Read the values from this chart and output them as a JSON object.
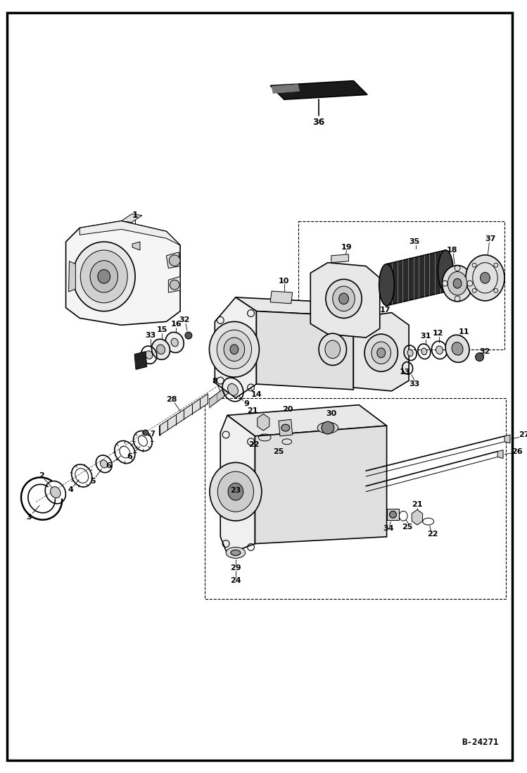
{
  "fig_width": 7.49,
  "fig_height": 10.97,
  "dpi": 100,
  "bg_color": "#ffffff",
  "title_code": "B-24271",
  "lw_thin": 0.7,
  "lw_med": 1.2,
  "lw_thick": 1.8
}
